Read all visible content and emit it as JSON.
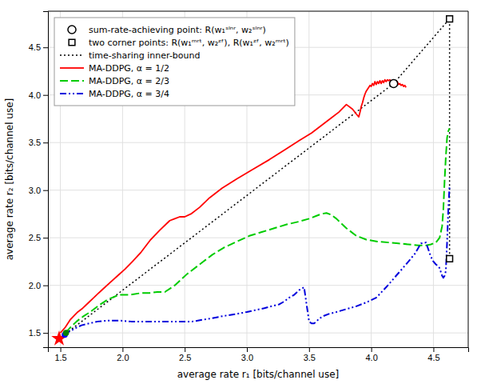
{
  "chart_data": {
    "type": "line",
    "xlabel": "average rate r₁ [bits/channel use]",
    "ylabel": "average rate r₂ [bits/channel use]",
    "xlim": [
      1.4,
      4.78
    ],
    "ylim": [
      1.35,
      4.88
    ],
    "xticks": [
      1.5,
      {
        "value": 2,
        "label": "2.0"
      },
      2.5,
      {
        "value": 3,
        "label": "3.0"
      },
      3.5,
      {
        "value": 4,
        "label": "4.0"
      },
      4.5
    ],
    "yticks": [
      1.5,
      {
        "value": 2,
        "label": "2.0"
      },
      2.5,
      {
        "value": 3,
        "label": "3.0"
      },
      3.5,
      {
        "value": 4,
        "label": "4.0"
      },
      4.5
    ],
    "grid": true,
    "legend": "upper left",
    "series": [
      {
        "name": "sum-rate-achieving point: R(w₁ˢˡⁿʳ, w₂ˢˡⁿʳ)",
        "type": "scatter",
        "marker": "open-circle",
        "color": "black",
        "x": [
          4.18
        ],
        "values": [
          4.12
        ]
      },
      {
        "name": "two corner points: R(w₁ᵐʳᵗ, w₂ᶻᶠ), R(w₁ᶻᶠ, w₂ᵐʳᵗ)",
        "type": "scatter",
        "marker": "open-square",
        "color": "black",
        "x": [
          4.63,
          4.63
        ],
        "values": [
          4.8,
          2.28
        ]
      },
      {
        "name": "time-sharing inner-bound",
        "type": "line",
        "line_style": "dotted",
        "color": "black",
        "x": [
          1.49,
          4.18,
          4.63,
          4.63
        ],
        "values": [
          1.44,
          4.12,
          4.8,
          2.28
        ]
      },
      {
        "name": "MA-DDPG, α = 1/2",
        "type": "line",
        "line_style": "solid",
        "color": "#FF0000",
        "x": [
          1.5,
          1.52,
          1.54,
          1.56,
          1.58,
          1.61,
          1.64,
          1.68,
          1.72,
          1.76,
          1.8,
          1.85,
          1.9,
          1.96,
          2.02,
          2.08,
          2.15,
          2.22,
          2.3,
          2.38,
          2.42,
          2.46,
          2.5,
          2.55,
          2.62,
          2.7,
          2.8,
          2.92,
          3.05,
          3.18,
          3.3,
          3.42,
          3.52,
          3.6,
          3.68,
          3.74,
          3.8,
          3.85,
          3.88,
          3.9,
          3.91,
          3.92,
          3.93,
          3.94,
          3.95,
          3.96,
          3.97,
          3.98,
          3.99,
          4.0,
          4.01,
          4.02,
          4.03,
          4.04,
          4.05,
          4.06,
          4.07,
          4.08,
          4.09,
          4.1,
          4.11,
          4.12,
          4.13,
          4.14,
          4.15,
          4.16,
          4.17,
          4.18,
          4.19,
          4.2,
          4.21,
          4.22,
          4.23,
          4.24,
          4.25,
          4.26,
          4.27,
          4.28
        ],
        "values": [
          1.5,
          1.53,
          1.56,
          1.6,
          1.64,
          1.68,
          1.72,
          1.76,
          1.81,
          1.86,
          1.91,
          1.97,
          2.03,
          2.1,
          2.17,
          2.25,
          2.35,
          2.47,
          2.58,
          2.68,
          2.7,
          2.72,
          2.72,
          2.75,
          2.82,
          2.92,
          3.02,
          3.12,
          3.22,
          3.32,
          3.42,
          3.52,
          3.6,
          3.68,
          3.76,
          3.82,
          3.9,
          3.85,
          3.8,
          3.77,
          3.82,
          3.88,
          3.92,
          3.97,
          4.01,
          4.04,
          4.06,
          4.08,
          4.1,
          4.09,
          4.12,
          4.1,
          4.14,
          4.11,
          4.14,
          4.12,
          4.15,
          4.12,
          4.15,
          4.13,
          4.16,
          4.14,
          4.16,
          4.15,
          4.16,
          4.14,
          4.15,
          4.12,
          4.14,
          4.12,
          4.14,
          4.11,
          4.12,
          4.1,
          4.11,
          4.09,
          4.1,
          4.08
        ]
      },
      {
        "name": "MA-DDPG, α = 2/3",
        "type": "line",
        "line_style": "dashed",
        "color": "#00CC00",
        "x": [
          1.545,
          1.56,
          1.59,
          1.63,
          1.68,
          1.74,
          1.8,
          1.88,
          1.97,
          2.06,
          2.15,
          2.22,
          2.28,
          2.34,
          2.42,
          2.52,
          2.62,
          2.72,
          2.82,
          2.92,
          3.02,
          3.12,
          3.22,
          3.32,
          3.42,
          3.5,
          3.56,
          3.6,
          3.64,
          3.68,
          3.72,
          3.76,
          3.8,
          3.88,
          3.96,
          4.05,
          4.14,
          4.22,
          4.3,
          4.38,
          4.44,
          4.48,
          4.52,
          4.55,
          4.57,
          4.58,
          4.59,
          4.6,
          4.61,
          4.62,
          4.63
        ],
        "values": [
          1.5,
          1.53,
          1.57,
          1.62,
          1.67,
          1.72,
          1.78,
          1.85,
          1.9,
          1.9,
          1.92,
          1.92,
          1.93,
          1.93,
          2.0,
          2.12,
          2.22,
          2.32,
          2.4,
          2.46,
          2.52,
          2.56,
          2.6,
          2.64,
          2.67,
          2.7,
          2.73,
          2.75,
          2.76,
          2.74,
          2.7,
          2.65,
          2.6,
          2.52,
          2.48,
          2.46,
          2.45,
          2.44,
          2.43,
          2.42,
          2.42,
          2.43,
          2.45,
          2.5,
          2.62,
          2.8,
          3.1,
          3.35,
          3.55,
          3.62,
          3.65
        ]
      },
      {
        "name": "MA-DDPG, α = 3/4",
        "type": "line",
        "line_style": "dash-dot-dot",
        "color": "#0000DD",
        "x": [
          1.535,
          1.55,
          1.58,
          1.62,
          1.67,
          1.73,
          1.8,
          1.88,
          1.97,
          2.07,
          2.18,
          2.3,
          2.43,
          2.56,
          2.7,
          2.82,
          2.92,
          3.0,
          3.07,
          3.14,
          3.2,
          3.26,
          3.3,
          3.34,
          3.38,
          3.42,
          3.46,
          3.5,
          3.52,
          3.54,
          3.56,
          3.58,
          3.62,
          3.66,
          3.72,
          3.8,
          3.88,
          3.96,
          4.04,
          4.12,
          4.2,
          4.28,
          4.35,
          4.4,
          4.44,
          4.48,
          4.5,
          4.52,
          4.54,
          4.55,
          4.56,
          4.57,
          4.58,
          4.59,
          4.6,
          4.61,
          4.62,
          4.63
        ],
        "values": [
          1.48,
          1.5,
          1.52,
          1.55,
          1.58,
          1.6,
          1.62,
          1.63,
          1.63,
          1.62,
          1.62,
          1.62,
          1.62,
          1.62,
          1.65,
          1.68,
          1.7,
          1.72,
          1.74,
          1.76,
          1.78,
          1.8,
          1.83,
          1.87,
          1.9,
          1.95,
          1.98,
          1.62,
          1.6,
          1.6,
          1.62,
          1.65,
          1.68,
          1.7,
          1.72,
          1.75,
          1.78,
          1.82,
          1.87,
          1.98,
          2.1,
          2.22,
          2.33,
          2.44,
          2.45,
          2.3,
          2.25,
          2.22,
          2.2,
          2.18,
          2.14,
          2.1,
          2.08,
          2.1,
          2.15,
          2.45,
          2.8,
          3.05
        ]
      },
      {
        "type": "scatter",
        "marker": "star",
        "color": "red",
        "x": [
          1.49
        ],
        "values": [
          1.44
        ]
      },
      {
        "type": "scatter",
        "marker": "circle",
        "color": "blue",
        "x": [
          1.535
        ],
        "values": [
          1.48
        ]
      },
      {
        "type": "scatter",
        "marker": "circle",
        "color": "green",
        "x": [
          1.545
        ],
        "values": [
          1.5
        ]
      }
    ]
  }
}
